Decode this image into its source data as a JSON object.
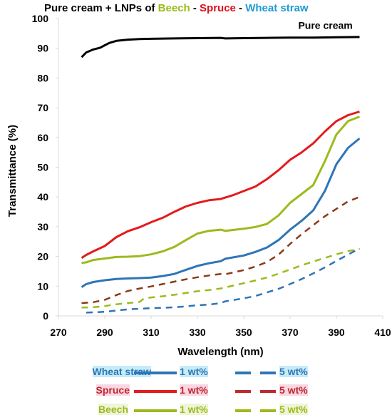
{
  "chart_data": {
    "type": "line",
    "title_parts": [
      {
        "text": "Pure cream + LNPs of ",
        "color": "#000000"
      },
      {
        "text": "Beech",
        "color": "#9bbb1c"
      },
      {
        "text": " - ",
        "color": "#000000"
      },
      {
        "text": "Spruce",
        "color": "#e0101a"
      },
      {
        "text": " - ",
        "color": "#000000"
      },
      {
        "text": "Wheat straw",
        "color": "#1e9bd2"
      }
    ],
    "xlabel": "Wavelength (nm)",
    "ylabel": "Transmittance (%)",
    "xlim": [
      270,
      410
    ],
    "ylim": [
      0,
      100
    ],
    "xticks": [
      270,
      290,
      310,
      330,
      350,
      370,
      390,
      410
    ],
    "yticks": [
      0,
      10,
      20,
      30,
      40,
      50,
      60,
      70,
      80,
      90,
      100
    ],
    "grid": false,
    "annotations": [
      {
        "text": "Pure cream",
        "x": 397,
        "y": 96.5
      }
    ],
    "series": [
      {
        "key": "pure",
        "color": "#000000",
        "dashed": false,
        "x": [
          280,
          282,
          285,
          288,
          290,
          292,
          295,
          300,
          305,
          310,
          320,
          330,
          340,
          342,
          350,
          360,
          370,
          380,
          390,
          400
        ],
        "y": [
          87,
          88.6,
          89.6,
          90.2,
          91,
          91.8,
          92.5,
          92.9,
          93.1,
          93.2,
          93.3,
          93.4,
          93.5,
          93.3,
          93.4,
          93.5,
          93.6,
          93.6,
          93.7,
          93.8
        ]
      },
      {
        "key": "spruce_1",
        "color": "#e41a1c",
        "dashed": false,
        "x": [
          280,
          282,
          285,
          290,
          295,
          300,
          305,
          310,
          315,
          320,
          325,
          330,
          335,
          340,
          345,
          350,
          355,
          360,
          365,
          370,
          375,
          380,
          385,
          390,
          395,
          400
        ],
        "y": [
          19.5,
          20.5,
          21.7,
          23.5,
          26.5,
          28.5,
          29.8,
          31.5,
          33,
          35,
          36.8,
          38,
          38.9,
          39.3,
          40.5,
          42,
          43.5,
          46,
          49,
          52.5,
          55,
          58,
          62,
          65.5,
          67.5,
          68.7
        ]
      },
      {
        "key": "beech_1",
        "color": "#9bbb1c",
        "dashed": false,
        "x": [
          280,
          282,
          285,
          290,
          295,
          300,
          305,
          310,
          315,
          320,
          325,
          330,
          335,
          340,
          342,
          350,
          355,
          360,
          365,
          370,
          375,
          380,
          385,
          390,
          395,
          400
        ],
        "y": [
          17.8,
          18,
          18.8,
          19.3,
          19.8,
          19.9,
          20.1,
          20.7,
          21.7,
          23.2,
          25.5,
          27.7,
          28.6,
          29,
          28.6,
          29.3,
          29.9,
          30.9,
          33.8,
          38,
          41,
          44,
          52,
          61,
          65.5,
          67
        ]
      },
      {
        "key": "wheat_1",
        "color": "#2e75b6",
        "dashed": false,
        "x": [
          280,
          282,
          285,
          290,
          295,
          300,
          305,
          310,
          315,
          320,
          325,
          330,
          335,
          340,
          342,
          350,
          355,
          360,
          365,
          370,
          375,
          380,
          385,
          390,
          395,
          400
        ],
        "y": [
          9.7,
          10.7,
          11.4,
          12,
          12.4,
          12.6,
          12.7,
          12.9,
          13.4,
          14.1,
          15.5,
          16.8,
          17.7,
          18.4,
          19.2,
          20.3,
          21.5,
          23,
          25.5,
          29,
          32,
          35.5,
          42,
          51,
          56.5,
          59.7
        ]
      },
      {
        "key": "spruce_5",
        "color": "#8b3a1a",
        "dashed": true,
        "x": [
          280,
          285,
          290,
          295,
          300,
          305,
          310,
          315,
          320,
          325,
          330,
          335,
          340,
          342,
          350,
          355,
          360,
          365,
          370,
          375,
          380,
          385,
          390,
          395,
          400
        ],
        "y": [
          4.3,
          4.6,
          5.4,
          7,
          8.4,
          9.2,
          9.9,
          10.7,
          11.5,
          12.3,
          13,
          13.6,
          14.1,
          14,
          15.4,
          16.6,
          18.1,
          20.6,
          24.2,
          27.5,
          30.5,
          33.5,
          36,
          38.5,
          40
        ]
      },
      {
        "key": "beech_5",
        "color": "#9bbb1c",
        "dashed": true,
        "x": [
          280,
          285,
          290,
          295,
          300,
          305,
          307,
          310,
          315,
          320,
          325,
          330,
          335,
          340,
          345,
          350,
          355,
          360,
          365,
          370,
          375,
          380,
          385,
          390,
          395,
          400
        ],
        "y": [
          2.8,
          2.9,
          3.3,
          3.9,
          4.3,
          4.7,
          5.9,
          6.2,
          6.6,
          7.1,
          7.7,
          8.3,
          8.7,
          9.2,
          10.1,
          11,
          11.9,
          12.9,
          14.2,
          15.6,
          17,
          18.3,
          19.5,
          20.7,
          21.8,
          22.5
        ]
      },
      {
        "key": "wheat_5",
        "color": "#2e75b6",
        "dashed": true,
        "x": [
          282,
          285,
          290,
          295,
          300,
          305,
          310,
          315,
          320,
          325,
          330,
          335,
          340,
          342,
          350,
          355,
          360,
          365,
          370,
          375,
          380,
          385,
          390,
          395,
          400
        ],
        "y": [
          1.1,
          1.2,
          1.4,
          1.8,
          2.2,
          2.4,
          2.6,
          2.7,
          2.9,
          3.2,
          3.6,
          3.8,
          4.3,
          4.9,
          5.9,
          6.7,
          7.9,
          9.1,
          10.7,
          12.4,
          14.3,
          16.3,
          18.5,
          20.6,
          22.7
        ]
      }
    ]
  },
  "legend": [
    {
      "name": "Wheat straw",
      "name_color": "#2e75b6",
      "highlight": "#c6ecf8",
      "solid_color": "#2e75b6",
      "dash_color": "#2e75b6",
      "label_1": "1 wt%",
      "label_5": "5 wt%",
      "label_color": "#2e75b6"
    },
    {
      "name": "Spruce",
      "name_color": "#c0282e",
      "highlight": "#f8d6e2",
      "solid_color": "#e41a1c",
      "dash_color": "#c0282e",
      "label_1": "1 wt%",
      "label_5": "5 wt%",
      "label_color": "#c0282e"
    },
    {
      "name": "Beech",
      "name_color": "#9bbb1c",
      "highlight": "#eef5d8",
      "solid_color": "#9bbb1c",
      "dash_color": "#9bbb1c",
      "label_1": "1 wt%",
      "label_5": "5 wt%",
      "label_color": "#9bbb1c"
    }
  ]
}
